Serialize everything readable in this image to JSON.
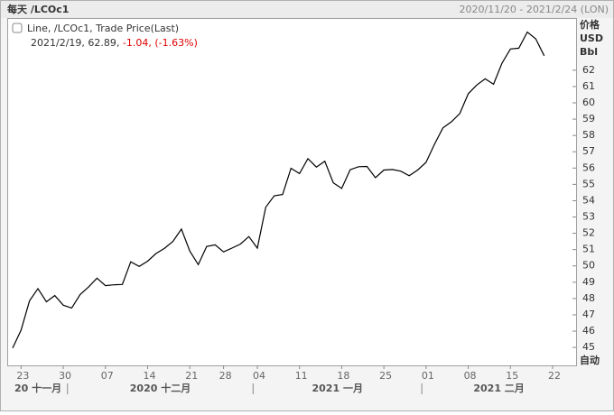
{
  "header": {
    "title": "每天 /LCOc1",
    "range": "2020/11/20 - 2021/2/24 (LON)"
  },
  "chart_data": {
    "type": "line",
    "categories": [
      null,
      "23",
      null,
      null,
      null,
      null,
      "30",
      null,
      null,
      null,
      null,
      "07",
      null,
      null,
      null,
      null,
      "14",
      null,
      null,
      null,
      null,
      "21",
      null,
      null,
      null,
      "28",
      null,
      null,
      null,
      "04",
      null,
      null,
      null,
      null,
      "11",
      null,
      null,
      null,
      null,
      "18",
      null,
      null,
      null,
      null,
      "25",
      null,
      null,
      null,
      null,
      "01",
      null,
      null,
      null,
      null,
      "08",
      null,
      null,
      null,
      null,
      "15",
      null,
      null,
      null,
      null,
      "22"
    ],
    "month_groups": [
      {
        "label": "20 十一月",
        "start": 0
      },
      {
        "label": "2020 十二月",
        "start": 7
      },
      {
        "label": "2021 一月",
        "start": 29
      },
      {
        "label": "2021 二月",
        "start": 49
      }
    ],
    "series": [
      {
        "name": "Line, /LCOc1, Trade Price(Last)",
        "color": "#000000",
        "values": [
          44.96,
          46.06,
          47.86,
          48.61,
          47.8,
          48.18,
          47.59,
          47.42,
          48.25,
          48.71,
          49.25,
          48.79,
          48.84,
          48.86,
          50.25,
          49.97,
          50.29,
          50.76,
          51.08,
          51.5,
          52.26,
          50.91,
          50.08,
          51.2,
          51.29,
          50.86,
          51.09,
          51.34,
          51.8,
          51.09,
          53.6,
          54.3,
          54.38,
          55.99,
          55.66,
          56.58,
          56.06,
          56.42,
          55.1,
          54.75,
          55.9,
          56.08,
          56.1,
          55.41,
          55.88,
          55.91,
          55.81,
          55.53,
          55.88,
          56.35,
          57.46,
          58.46,
          58.84,
          59.34,
          60.56,
          61.09,
          61.47,
          61.14,
          62.43,
          63.3,
          63.35,
          64.34,
          63.93,
          62.89,
          null
        ]
      }
    ],
    "readout": {
      "date": "2021/2/19,",
      "price": "62.89,",
      "change": "-1.04,",
      "change_pct": "(-1.63%)",
      "change_color": "#e00000"
    },
    "y_unit": [
      "价格",
      "USD",
      "Bbl"
    ],
    "scale_mode": "自动",
    "ylim": [
      43.9,
      65.2
    ],
    "yticks": [
      45,
      46,
      47,
      48,
      49,
      50,
      51,
      52,
      53,
      54,
      55,
      56,
      57,
      58,
      59,
      60,
      61,
      62
    ],
    "grid": false
  }
}
